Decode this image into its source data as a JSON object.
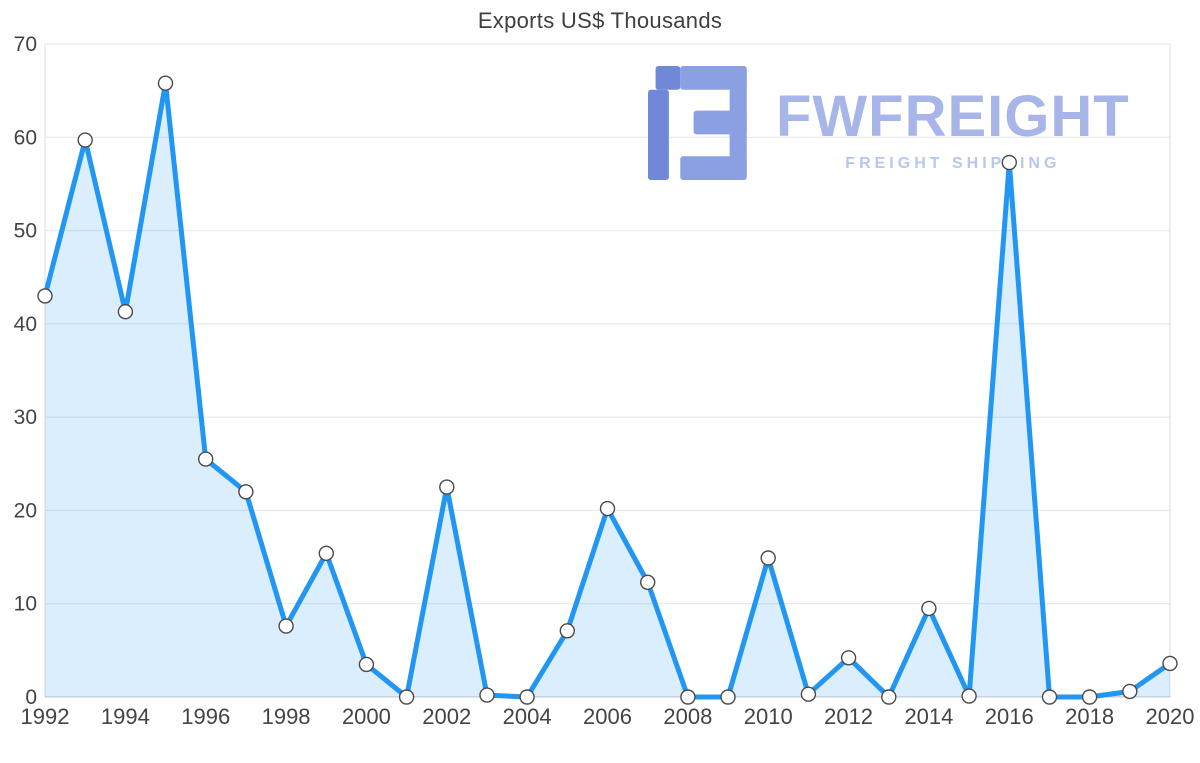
{
  "chart_data": {
    "type": "area",
    "title": "Exports US$ Thousands",
    "categories": [
      1992,
      1993,
      1994,
      1995,
      1996,
      1997,
      1998,
      1999,
      2000,
      2001,
      2002,
      2003,
      2004,
      2005,
      2006,
      2007,
      2008,
      2009,
      2010,
      2011,
      2012,
      2013,
      2014,
      2015,
      2016,
      2017,
      2018,
      2019,
      2020
    ],
    "values": [
      43,
      59.7,
      41.3,
      65.8,
      25.5,
      22,
      7.6,
      15.4,
      3.5,
      0,
      22.5,
      0.2,
      0,
      7.1,
      20.2,
      12.3,
      0,
      0,
      14.9,
      0.3,
      4.2,
      0,
      9.5,
      0.1,
      57.3,
      0,
      0,
      0.6,
      3.6
    ],
    "xlabel": "",
    "ylabel": "",
    "ylim": [
      0,
      70
    ],
    "ytick_step": 10,
    "xtick_step": 2,
    "grid": true,
    "legend": false,
    "colors": {
      "line": "#2196f3",
      "fill": "rgba(33,150,243,0.16)",
      "marker_fill": "#ffffff",
      "marker_stroke": "#4a4a4a",
      "grid": "#e4e4e4",
      "axis": "#c8c8c8",
      "border": "#dcdcdc",
      "tick_text": "#444444",
      "title_text": "#3f3f3f"
    }
  },
  "watermark": {
    "brand": "FWFREIGHT",
    "tagline": "FREIGHT SHIPPING",
    "colors": {
      "brand": "#a7b5e9",
      "tagline": "#b6c8f0",
      "logo_light": "#8ba0e2",
      "logo_dark": "#7187d8"
    }
  }
}
